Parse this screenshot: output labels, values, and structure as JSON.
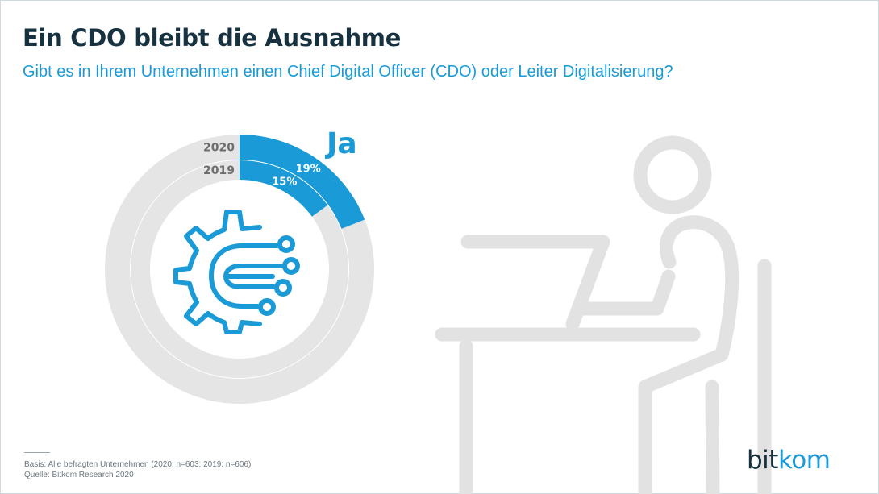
{
  "header": {
    "title": "Ein CDO bleibt die Ausnahme",
    "subtitle": "Gibt es in Ihrem Unternehmen einen Chief Digital Officer (CDO) oder Leiter Digitalisierung?"
  },
  "chart_data": {
    "type": "pie",
    "variant": "concentric-donut",
    "highlight_label": "Ja",
    "series": [
      {
        "name": "2020",
        "value": 19,
        "value_label": "19%"
      },
      {
        "name": "2019",
        "value": 15,
        "value_label": "15%"
      }
    ],
    "colors": {
      "highlight": "#1a9bd7",
      "remainder": "#e5e5e5"
    }
  },
  "icons": {
    "center": "digital-gear-circuit-icon",
    "illustration": "person-at-laptop-illustration"
  },
  "footer": {
    "basis": "Basis: Alle befragten Unternehmen (2020: n=603; 2019: n=606)",
    "source": "Quelle: Bitkom Research 2020"
  },
  "logo": {
    "part1": "bit",
    "part2": "kom"
  }
}
